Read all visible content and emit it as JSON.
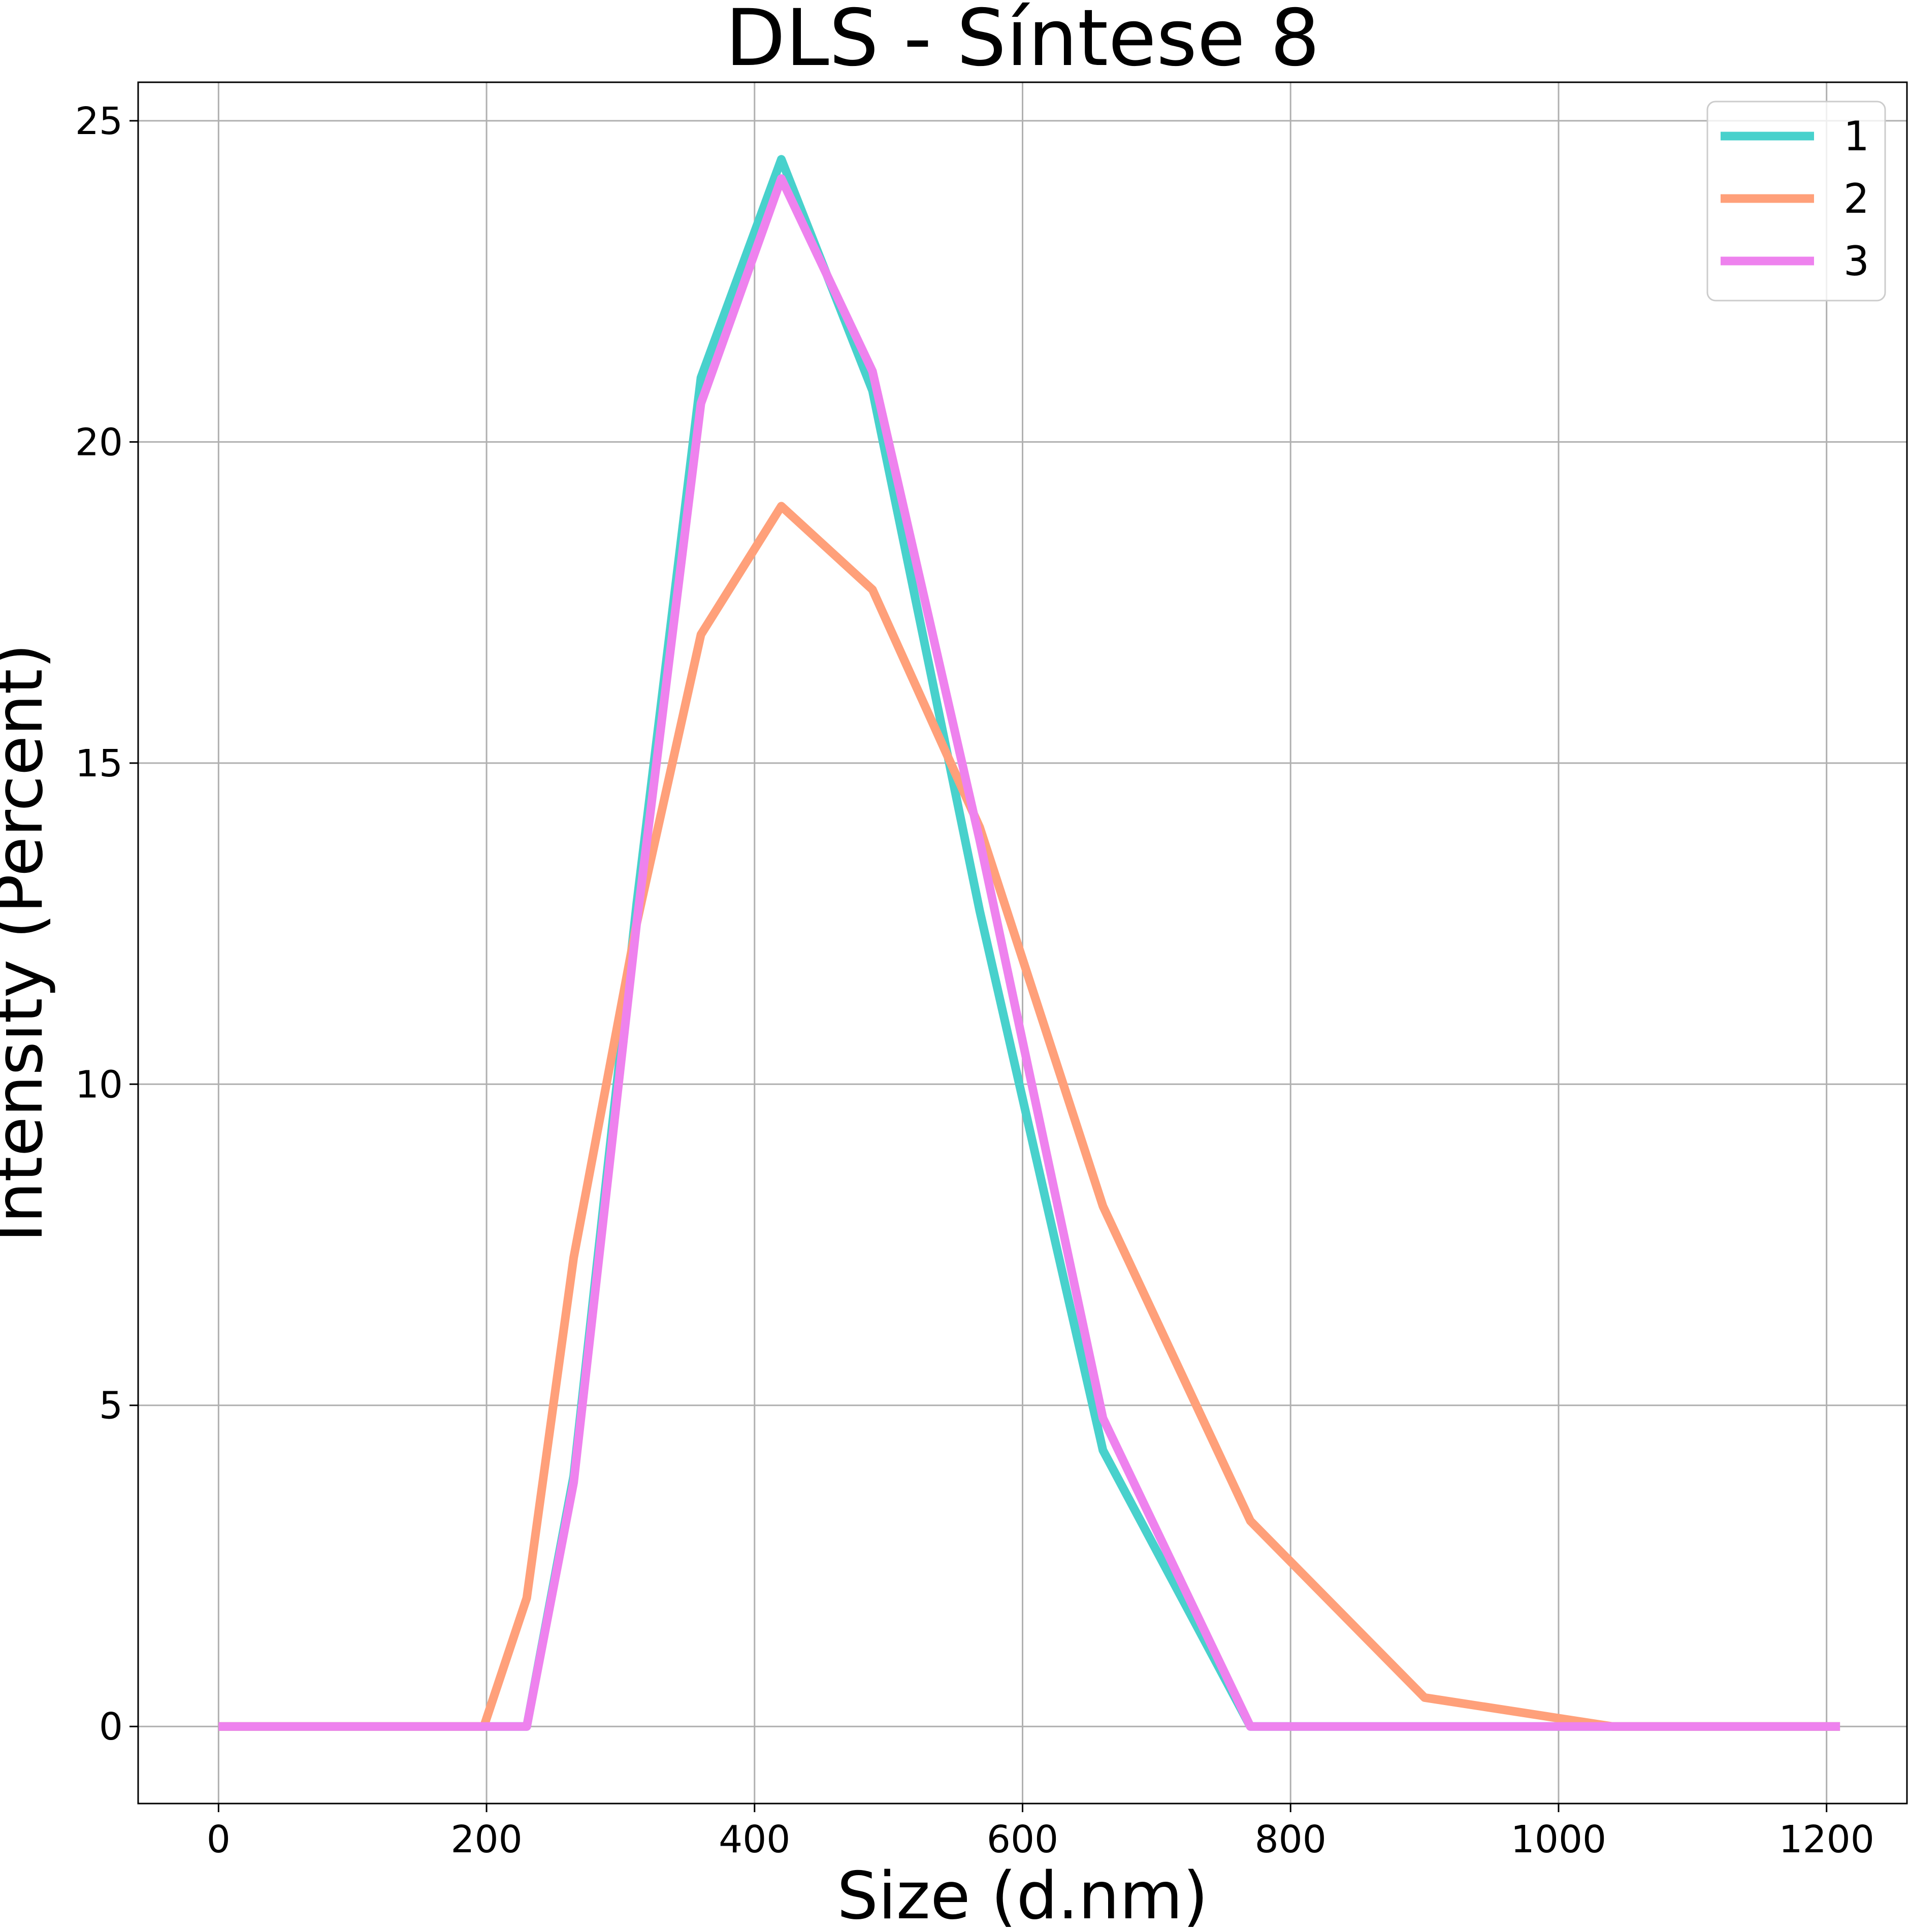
{
  "chart_data": {
    "type": "line",
    "title": "DLS - Síntese 8",
    "xlabel": "Size (d.nm)",
    "ylabel": "Intensity (Percent)",
    "xlim": [
      -60,
      1260
    ],
    "ylim": [
      -1.2,
      25.6
    ],
    "xticks": [
      0,
      200,
      400,
      600,
      800,
      1000,
      1200
    ],
    "yticks": [
      0,
      5,
      10,
      15,
      20,
      25
    ],
    "grid": true,
    "legend_position": "top-right",
    "series": [
      {
        "name": "1",
        "color": "#48d1cc",
        "x": [
          0,
          200,
          230,
          265,
          312,
          360,
          420,
          488,
          568,
          660,
          770,
          900,
          1040,
          1210
        ],
        "y": [
          0,
          0,
          0,
          3.9,
          12.8,
          21.0,
          24.4,
          20.8,
          12.7,
          4.3,
          0,
          0,
          0,
          0
        ]
      },
      {
        "name": "2",
        "color": "#ffa07a",
        "x": [
          0,
          198,
          230,
          265,
          312,
          360,
          420,
          488,
          568,
          660,
          770,
          900,
          1040,
          1210
        ],
        "y": [
          0,
          0,
          2.0,
          7.3,
          12.5,
          17.0,
          19.0,
          17.7,
          14.0,
          8.1,
          3.2,
          0.45,
          0,
          0
        ]
      },
      {
        "name": "3",
        "color": "#ee82ee",
        "x": [
          0,
          200,
          230,
          265,
          312,
          360,
          420,
          488,
          568,
          660,
          770,
          900,
          1040,
          1210
        ],
        "y": [
          0,
          0,
          0,
          3.8,
          12.5,
          20.6,
          24.1,
          21.1,
          13.8,
          4.8,
          0,
          0,
          0,
          0
        ]
      }
    ]
  }
}
